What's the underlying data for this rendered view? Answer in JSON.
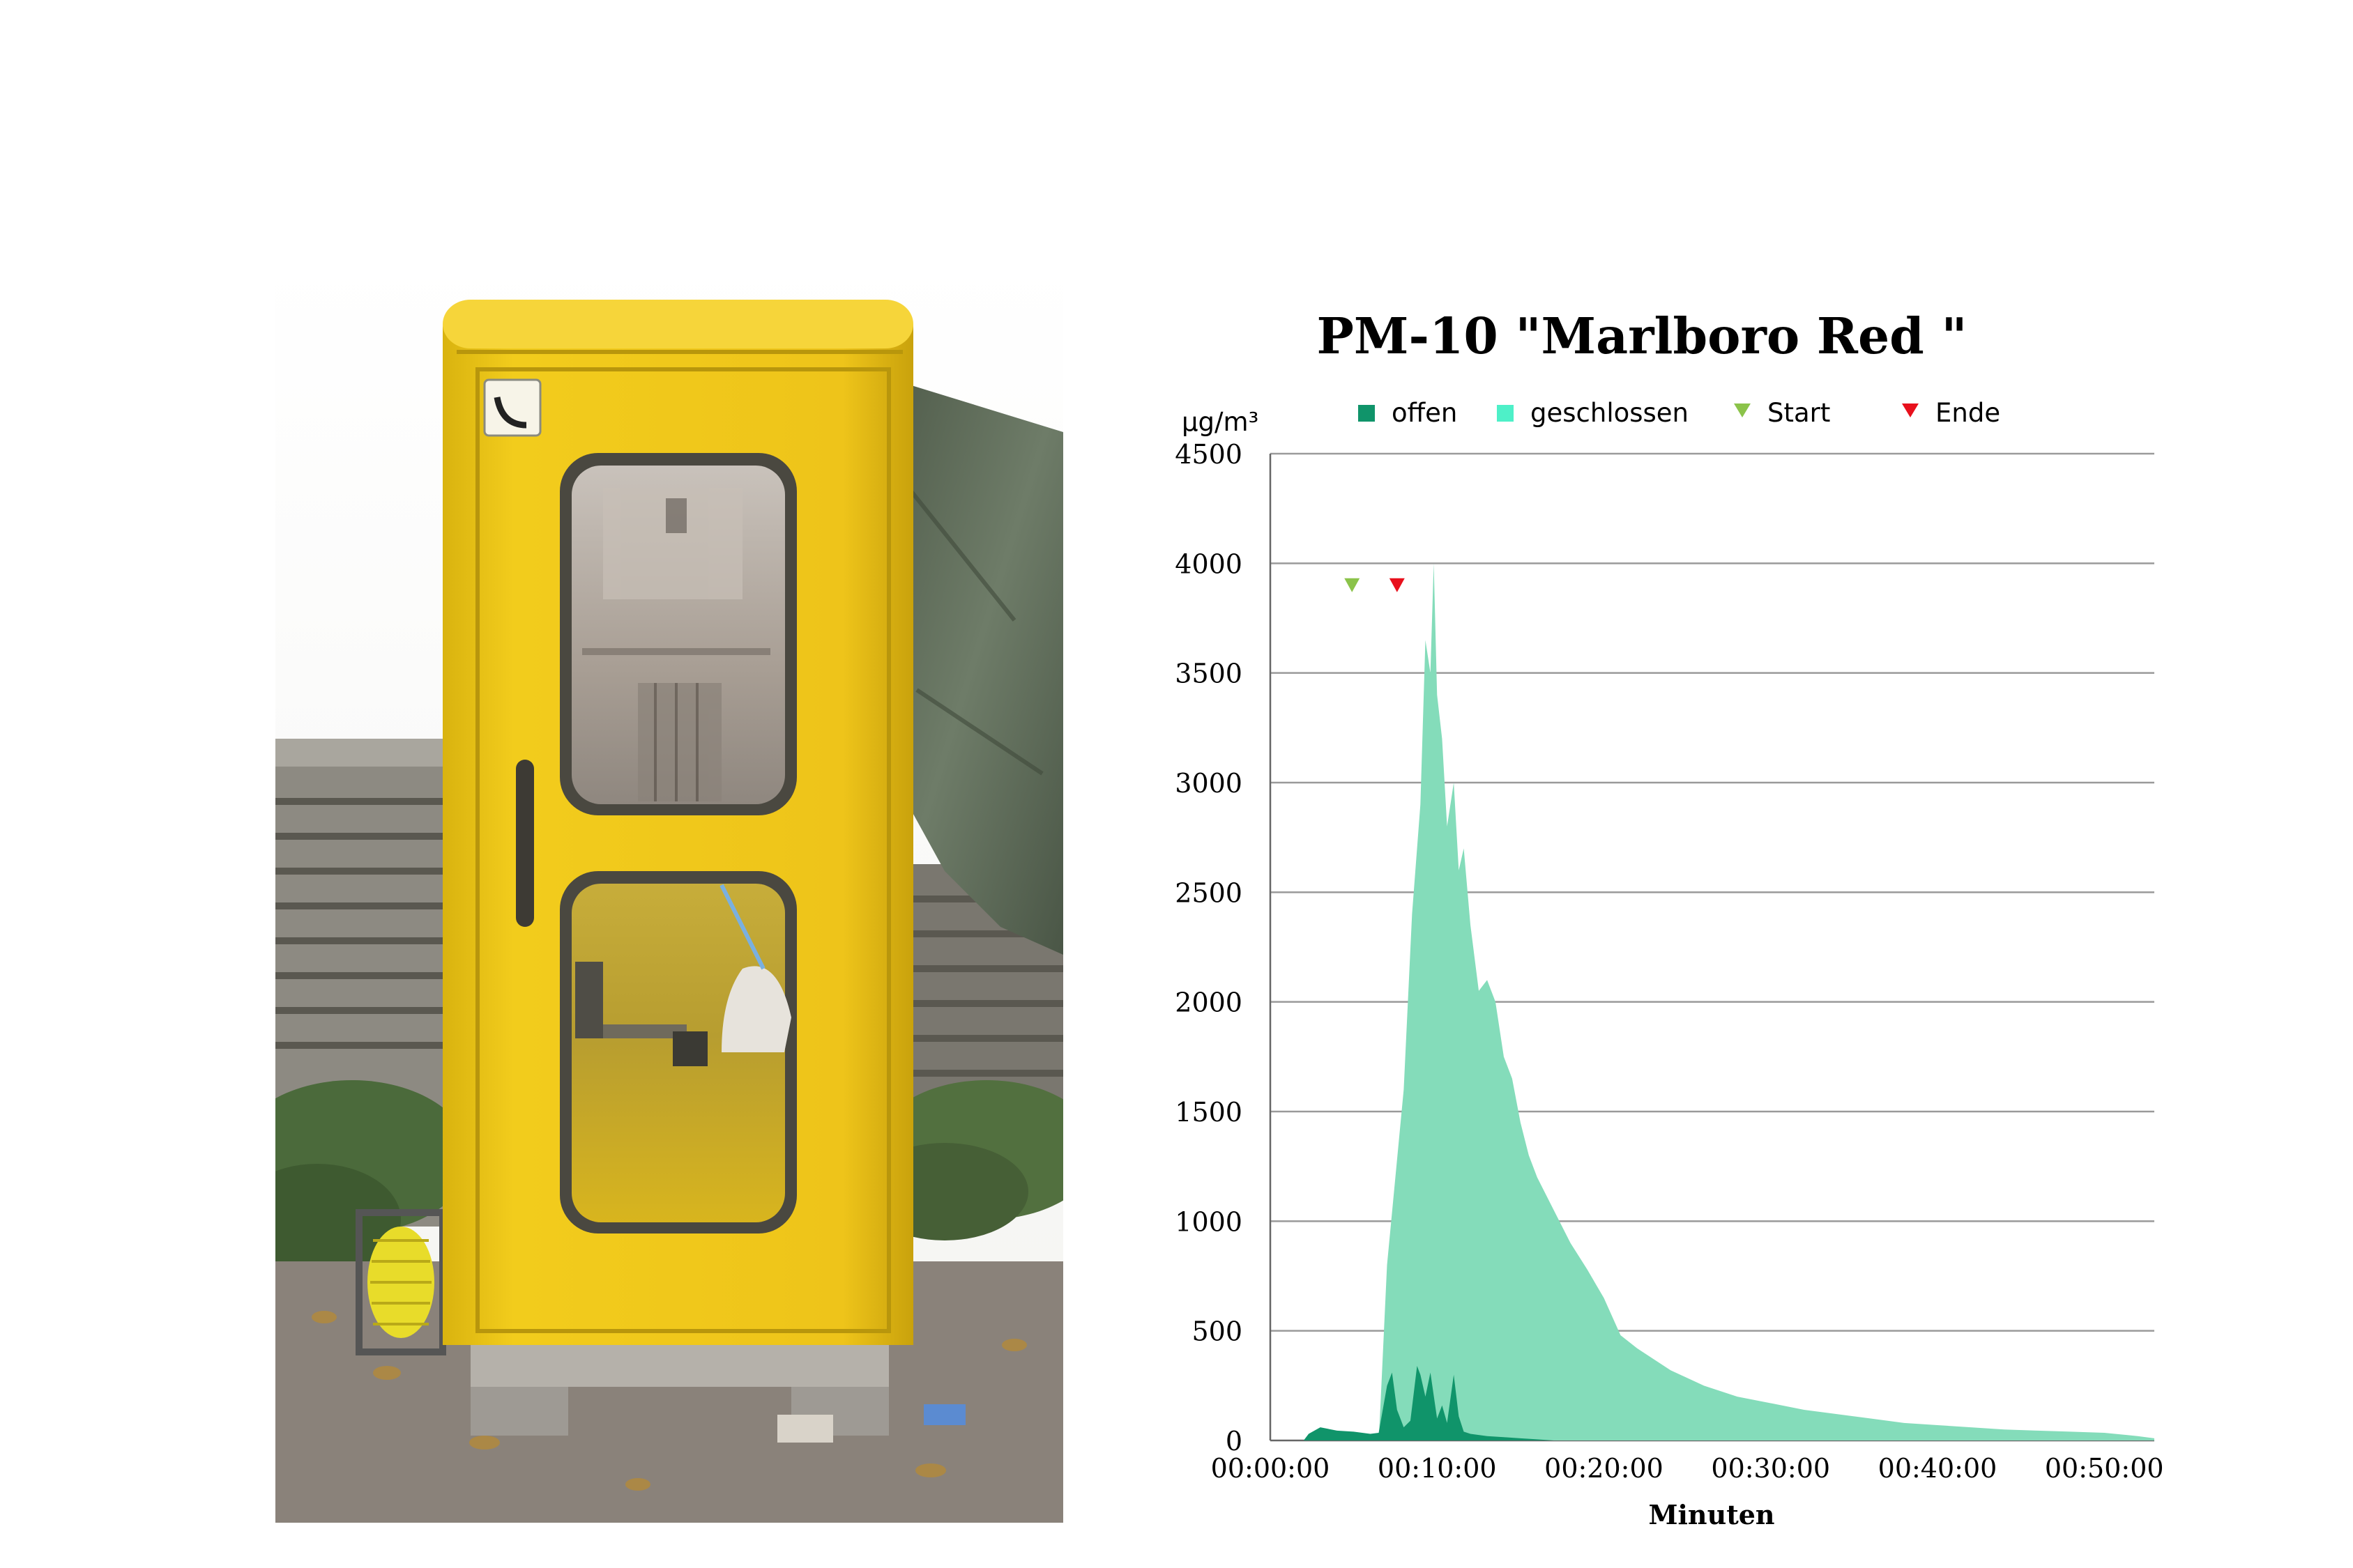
{
  "photo": {
    "subject": "yellow telephone booth with measuring equipment",
    "colors": {
      "booth": "#f0c817",
      "tarp": "#5d6b58",
      "wall": "#6f6d66",
      "pavement": "#8c857e"
    }
  },
  "chart_data": {
    "type": "area",
    "title": "PM-10 \"Marlboro Red \"",
    "xlabel": "Minuten",
    "ylabel": "µg/m³",
    "ylim": [
      0,
      4500
    ],
    "yticks": [
      "0",
      "500",
      "1000",
      "1500",
      "2000",
      "2500",
      "3000",
      "3500",
      "4000",
      "4500"
    ],
    "xlim": [
      0,
      53
    ],
    "xticks": [
      {
        "value": 0,
        "label": "00:00:00"
      },
      {
        "value": 10,
        "label": "00:10:00"
      },
      {
        "value": 20,
        "label": "00:20:00"
      },
      {
        "value": 30,
        "label": "00:30:00"
      },
      {
        "value": 40,
        "label": "00:40:00"
      },
      {
        "value": 50,
        "label": "00:50:00"
      }
    ],
    "grid": true,
    "legend_position": "top",
    "legend": [
      {
        "label": "offen",
        "marker": "square",
        "color": "#10946a"
      },
      {
        "label": "geschlossen",
        "marker": "square",
        "color": "#4ef0c8"
      },
      {
        "label": "Start",
        "marker": "triangle",
        "color": "#8bc34a"
      },
      {
        "label": "Ende",
        "marker": "triangle",
        "color": "#e8101c"
      }
    ],
    "markers": [
      {
        "name": "Start",
        "x": 4.9,
        "y": 3900,
        "color": "#8bc34a"
      },
      {
        "name": "Ende",
        "x": 7.6,
        "y": 3900,
        "color": "#e8101c"
      }
    ],
    "series": [
      {
        "name": "geschlossen",
        "color": "#84dcba",
        "x": [
          0,
          6.5,
          6.6,
          7.0,
          7.5,
          8.0,
          8.5,
          9.0,
          9.3,
          9.6,
          9.8,
          10.0,
          10.3,
          10.6,
          11.0,
          11.3,
          11.6,
          12.0,
          12.5,
          13.0,
          13.5,
          14.0,
          14.5,
          15.0,
          15.5,
          16.0,
          17.0,
          18.0,
          19.0,
          20.0,
          21.0,
          22.0,
          24.0,
          26.0,
          28.0,
          30.0,
          32.0,
          34.0,
          36.0,
          38.0,
          40.0,
          42.0,
          44.0,
          46.0,
          48.0,
          50.0,
          52.0,
          53.0
        ],
        "y": [
          0,
          0,
          150,
          800,
          1200,
          1600,
          2400,
          2900,
          3650,
          3500,
          4000,
          3400,
          3200,
          2800,
          3000,
          2600,
          2700,
          2350,
          2050,
          2100,
          2000,
          1750,
          1650,
          1450,
          1300,
          1200,
          1050,
          900,
          780,
          650,
          480,
          420,
          320,
          250,
          200,
          170,
          140,
          120,
          100,
          80,
          70,
          60,
          50,
          45,
          40,
          35,
          20,
          10
        ]
      },
      {
        "name": "offen",
        "color": "#10946a",
        "x": [
          0,
          2.0,
          2.3,
          3.0,
          4.0,
          5.0,
          6.0,
          6.5,
          7.0,
          7.3,
          7.6,
          8.0,
          8.4,
          8.8,
          9.0,
          9.3,
          9.6,
          10.0,
          10.3,
          10.6,
          11.0,
          11.3,
          11.6,
          12.0,
          12.5,
          13.0,
          14.0,
          15.0,
          16.0,
          17.0
        ],
        "y": [
          0,
          0,
          30,
          60,
          45,
          40,
          30,
          35,
          250,
          310,
          140,
          60,
          90,
          340,
          300,
          200,
          310,
          100,
          160,
          80,
          300,
          110,
          40,
          30,
          25,
          20,
          15,
          10,
          5,
          0
        ]
      }
    ]
  }
}
